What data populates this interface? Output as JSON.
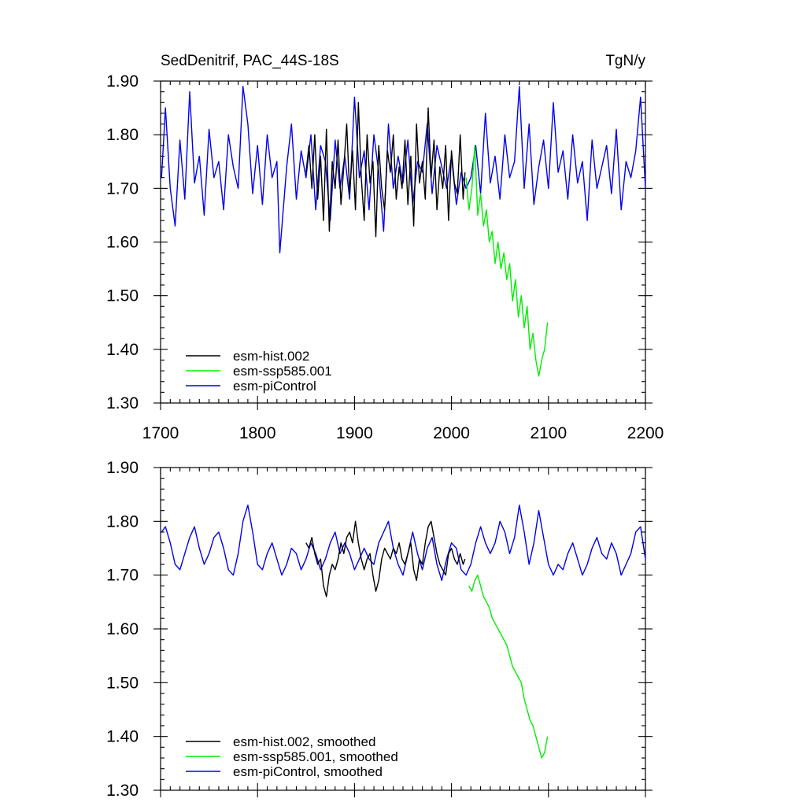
{
  "colors": {
    "esm-hist.002": "#000000",
    "esm-ssp585.001": "#00ee00",
    "esm-piControl": "#0000ee"
  },
  "chart_data": [
    {
      "type": "line",
      "title": "SedDenitrif, PAC_44S-18S",
      "units": "TgN/y",
      "xlim": [
        1700,
        2200
      ],
      "ylim": [
        1.3,
        1.9
      ],
      "x_ticks": [
        "1700",
        "1800",
        "1900",
        "2000",
        "2100",
        "2200"
      ],
      "y_ticks": [
        "1.30",
        "1.40",
        "1.50",
        "1.60",
        "1.70",
        "1.80",
        "1.90"
      ],
      "legend": [
        "esm-hist.002",
        "esm-ssp585.001",
        "esm-piControl"
      ],
      "series": [
        {
          "name": "esm-piControl",
          "color": "#0000ee",
          "x": [
            1701,
            1705,
            1710,
            1715,
            1720,
            1725,
            1730,
            1735,
            1740,
            1745,
            1750,
            1755,
            1760,
            1765,
            1770,
            1775,
            1780,
            1785,
            1790,
            1795,
            1800,
            1805,
            1810,
            1815,
            1820,
            1823,
            1830,
            1835,
            1840,
            1845,
            1850,
            1855,
            1860,
            1865,
            1870,
            1875,
            1880,
            1885,
            1890,
            1895,
            1900,
            1905,
            1910,
            1915,
            1920,
            1925,
            1930,
            1935,
            1940,
            1945,
            1950,
            1955,
            1960,
            1965,
            1970,
            1975,
            1980,
            1985,
            1990,
            1995,
            2000,
            2005,
            2010,
            2015,
            2020,
            2025,
            2030,
            2035,
            2040,
            2045,
            2050,
            2055,
            2060,
            2065,
            2070,
            2075,
            2080,
            2085,
            2090,
            2095,
            2100,
            2105,
            2110,
            2115,
            2120,
            2125,
            2130,
            2135,
            2140,
            2145,
            2150,
            2155,
            2160,
            2165,
            2170,
            2175,
            2180,
            2185,
            2190,
            2195,
            2200
          ],
          "values": [
            1.72,
            1.85,
            1.7,
            1.63,
            1.79,
            1.68,
            1.88,
            1.71,
            1.76,
            1.65,
            1.81,
            1.72,
            1.75,
            1.66,
            1.8,
            1.74,
            1.7,
            1.89,
            1.82,
            1.69,
            1.78,
            1.67,
            1.8,
            1.72,
            1.75,
            1.58,
            1.74,
            1.82,
            1.68,
            1.77,
            1.72,
            1.8,
            1.66,
            1.78,
            1.75,
            1.64,
            1.79,
            1.7,
            1.76,
            1.68,
            1.87,
            1.72,
            1.77,
            1.66,
            1.8,
            1.73,
            1.62,
            1.82,
            1.7,
            1.76,
            1.71,
            1.79,
            1.67,
            1.75,
            1.73,
            1.82,
            1.69,
            1.78,
            1.74,
            1.7,
            1.76,
            1.67,
            1.73,
            1.7,
            1.72,
            1.78,
            1.69,
            1.84,
            1.71,
            1.76,
            1.68,
            1.8,
            1.72,
            1.75,
            1.89,
            1.7,
            1.82,
            1.67,
            1.74,
            1.79,
            1.7,
            1.86,
            1.73,
            1.77,
            1.68,
            1.8,
            1.71,
            1.75,
            1.64,
            1.79,
            1.7,
            1.74,
            1.78,
            1.69,
            1.81,
            1.66,
            1.75,
            1.72,
            1.77,
            1.87,
            1.7
          ]
        },
        {
          "name": "esm-hist.002",
          "color": "#000000",
          "x": [
            1850,
            1853,
            1856,
            1859,
            1862,
            1865,
            1868,
            1871,
            1874,
            1877,
            1880,
            1883,
            1886,
            1889,
            1892,
            1895,
            1898,
            1901,
            1904,
            1907,
            1910,
            1913,
            1916,
            1919,
            1922,
            1925,
            1928,
            1931,
            1934,
            1937,
            1940,
            1943,
            1946,
            1949,
            1952,
            1955,
            1958,
            1961,
            1964,
            1967,
            1970,
            1973,
            1976,
            1979,
            1982,
            1985,
            1988,
            1991,
            1994,
            1997,
            2000,
            2003,
            2006,
            2009,
            2012,
            2014
          ],
          "values": [
            1.73,
            1.78,
            1.7,
            1.8,
            1.68,
            1.76,
            1.64,
            1.81,
            1.62,
            1.75,
            1.7,
            1.79,
            1.67,
            1.74,
            1.82,
            1.69,
            1.77,
            1.66,
            1.86,
            1.72,
            1.64,
            1.8,
            1.71,
            1.75,
            1.61,
            1.78,
            1.7,
            1.66,
            1.77,
            1.73,
            1.8,
            1.68,
            1.74,
            1.7,
            1.79,
            1.67,
            1.76,
            1.63,
            1.82,
            1.71,
            1.75,
            1.68,
            1.85,
            1.72,
            1.79,
            1.66,
            1.74,
            1.7,
            1.78,
            1.64,
            1.77,
            1.71,
            1.69,
            1.8,
            1.68,
            1.73
          ]
        },
        {
          "name": "esm-ssp585.001",
          "color": "#00ee00",
          "x": [
            2015,
            2018,
            2021,
            2024,
            2027,
            2030,
            2033,
            2036,
            2039,
            2042,
            2045,
            2048,
            2051,
            2054,
            2057,
            2060,
            2063,
            2066,
            2069,
            2072,
            2075,
            2078,
            2081,
            2084,
            2087,
            2090,
            2093,
            2096,
            2099
          ],
          "values": [
            1.72,
            1.66,
            1.7,
            1.78,
            1.65,
            1.69,
            1.63,
            1.66,
            1.6,
            1.62,
            1.56,
            1.6,
            1.55,
            1.58,
            1.53,
            1.56,
            1.49,
            1.53,
            1.46,
            1.5,
            1.44,
            1.48,
            1.4,
            1.43,
            1.38,
            1.35,
            1.38,
            1.4,
            1.45
          ]
        }
      ]
    },
    {
      "type": "line",
      "title": "",
      "xlim": [
        1700,
        2200
      ],
      "ylim": [
        1.3,
        1.9
      ],
      "y_ticks": [
        "1.30",
        "1.40",
        "1.50",
        "1.60",
        "1.70",
        "1.80",
        "1.90"
      ],
      "legend": [
        "esm-hist.002, smoothed",
        "esm-ssp585.001, smoothed",
        "esm-piControl, smoothed"
      ],
      "series": [
        {
          "name": "esm-piControl, smoothed",
          "color": "#0000ee",
          "x": [
            1701,
            1705,
            1710,
            1715,
            1720,
            1725,
            1730,
            1735,
            1740,
            1745,
            1750,
            1755,
            1760,
            1765,
            1770,
            1775,
            1780,
            1785,
            1790,
            1795,
            1800,
            1805,
            1810,
            1815,
            1820,
            1825,
            1830,
            1835,
            1840,
            1845,
            1850,
            1855,
            1860,
            1865,
            1870,
            1875,
            1880,
            1885,
            1890,
            1895,
            1900,
            1905,
            1910,
            1915,
            1920,
            1925,
            1930,
            1935,
            1940,
            1945,
            1950,
            1955,
            1960,
            1965,
            1970,
            1975,
            1980,
            1985,
            1990,
            1995,
            2000,
            2005,
            2010,
            2015,
            2020,
            2025,
            2030,
            2035,
            2040,
            2045,
            2050,
            2055,
            2060,
            2065,
            2070,
            2075,
            2080,
            2085,
            2090,
            2095,
            2100,
            2105,
            2110,
            2115,
            2120,
            2125,
            2130,
            2135,
            2140,
            2145,
            2150,
            2155,
            2160,
            2165,
            2170,
            2175,
            2180,
            2185,
            2190,
            2195,
            2200
          ],
          "values": [
            1.78,
            1.79,
            1.76,
            1.72,
            1.71,
            1.74,
            1.77,
            1.79,
            1.75,
            1.72,
            1.74,
            1.77,
            1.78,
            1.75,
            1.71,
            1.7,
            1.74,
            1.8,
            1.83,
            1.78,
            1.72,
            1.71,
            1.74,
            1.76,
            1.73,
            1.7,
            1.72,
            1.75,
            1.74,
            1.71,
            1.73,
            1.76,
            1.74,
            1.71,
            1.73,
            1.76,
            1.78,
            1.74,
            1.76,
            1.74,
            1.71,
            1.73,
            1.75,
            1.73,
            1.72,
            1.76,
            1.78,
            1.8,
            1.75,
            1.72,
            1.7,
            1.74,
            1.78,
            1.74,
            1.71,
            1.75,
            1.77,
            1.72,
            1.69,
            1.73,
            1.76,
            1.75,
            1.71,
            1.7,
            1.72,
            1.76,
            1.79,
            1.76,
            1.74,
            1.76,
            1.8,
            1.78,
            1.74,
            1.77,
            1.83,
            1.78,
            1.72,
            1.76,
            1.82,
            1.77,
            1.72,
            1.7,
            1.72,
            1.71,
            1.74,
            1.76,
            1.73,
            1.7,
            1.72,
            1.75,
            1.77,
            1.74,
            1.73,
            1.76,
            1.74,
            1.7,
            1.72,
            1.74,
            1.78,
            1.79,
            1.73
          ]
        },
        {
          "name": "esm-hist.002, smoothed",
          "color": "#000000",
          "x": [
            1850,
            1853,
            1856,
            1859,
            1862,
            1865,
            1868,
            1871,
            1874,
            1877,
            1880,
            1883,
            1886,
            1889,
            1892,
            1895,
            1898,
            1901,
            1904,
            1907,
            1910,
            1913,
            1916,
            1919,
            1922,
            1925,
            1928,
            1931,
            1934,
            1937,
            1940,
            1943,
            1946,
            1949,
            1952,
            1955,
            1958,
            1961,
            1964,
            1967,
            1970,
            1973,
            1976,
            1979,
            1982,
            1985,
            1988,
            1991,
            1994,
            1997,
            2000,
            2003,
            2006,
            2009,
            2012,
            2014
          ],
          "values": [
            1.76,
            1.75,
            1.77,
            1.74,
            1.72,
            1.73,
            1.68,
            1.66,
            1.7,
            1.72,
            1.71,
            1.73,
            1.76,
            1.74,
            1.77,
            1.78,
            1.76,
            1.8,
            1.76,
            1.73,
            1.71,
            1.73,
            1.74,
            1.7,
            1.67,
            1.69,
            1.73,
            1.75,
            1.74,
            1.73,
            1.75,
            1.74,
            1.76,
            1.73,
            1.72,
            1.74,
            1.76,
            1.71,
            1.69,
            1.73,
            1.72,
            1.76,
            1.79,
            1.8,
            1.77,
            1.74,
            1.72,
            1.71,
            1.7,
            1.74,
            1.75,
            1.73,
            1.72,
            1.74,
            1.72,
            1.73
          ]
        },
        {
          "name": "esm-ssp585.001, smoothed",
          "color": "#00ee00",
          "x": [
            2018,
            2021,
            2024,
            2027,
            2030,
            2033,
            2036,
            2039,
            2042,
            2045,
            2048,
            2051,
            2054,
            2057,
            2060,
            2063,
            2066,
            2069,
            2072,
            2075,
            2078,
            2081,
            2084,
            2087,
            2090,
            2093,
            2096,
            2099
          ],
          "values": [
            1.68,
            1.67,
            1.69,
            1.7,
            1.68,
            1.66,
            1.65,
            1.64,
            1.62,
            1.61,
            1.6,
            1.59,
            1.58,
            1.57,
            1.55,
            1.53,
            1.52,
            1.51,
            1.5,
            1.47,
            1.45,
            1.43,
            1.42,
            1.4,
            1.38,
            1.36,
            1.37,
            1.4
          ]
        }
      ]
    }
  ]
}
